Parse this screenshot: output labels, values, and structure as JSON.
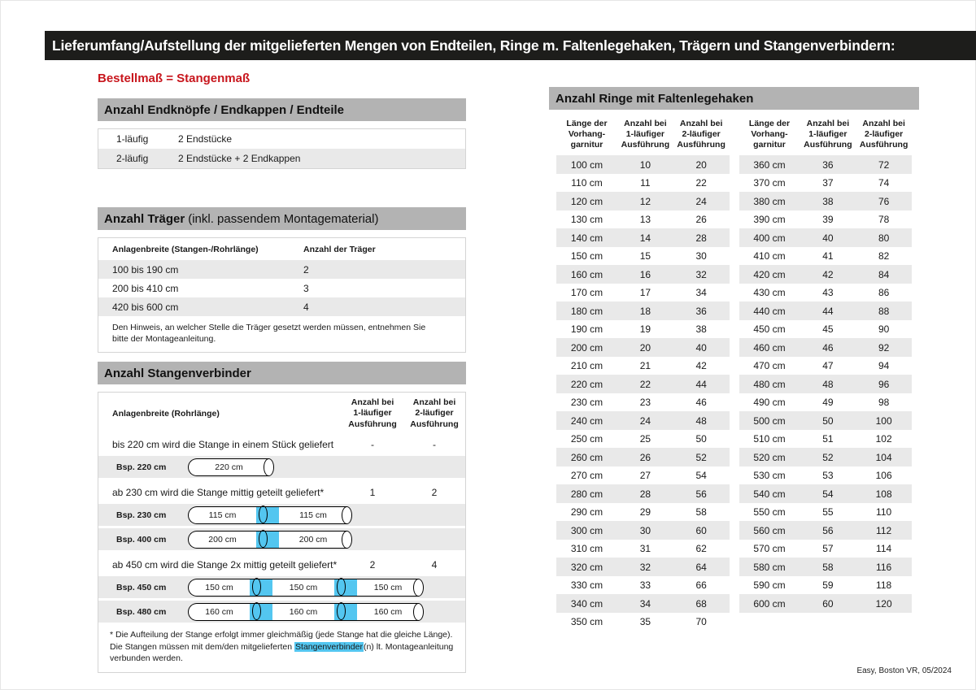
{
  "page": {
    "title": "Lieferumfang/Aufstellung der mitgelieferten Mengen von Endteilen, Ringe m. Faltenlegehaken, Trägern und Stangenverbindern:",
    "subtitle": "Bestellmaß = Stangenmaß",
    "footer": "Easy, Boston VR, 05/2024"
  },
  "colors": {
    "bar_dark": "#1d1d1b",
    "header_gray": "#b3b3b3",
    "stripe_gray": "#e9e9e9",
    "accent_red": "#c8161d",
    "connector_cyan": "#53c6f0"
  },
  "endteile": {
    "header": "Anzahl Endknöpfe / Endkappen / Endteile",
    "rows": [
      {
        "type": "1-läufig",
        "value": "2 Endstücke"
      },
      {
        "type": "2-läufig",
        "value": "2 Endstücke + 2 Endkappen"
      }
    ]
  },
  "traeger": {
    "header_bold": "Anzahl Träger",
    "header_rest": "(inkl. passendem Montagematerial)",
    "col1": "Anlagenbreite (Stangen-/Rohrlänge)",
    "col2": "Anzahl der Träger",
    "rows": [
      {
        "range": "100 bis 190 cm",
        "count": "2"
      },
      {
        "range": "200 bis 410 cm",
        "count": "3"
      },
      {
        "range": "420 bis 600 cm",
        "count": "4"
      }
    ],
    "note": "Den Hinweis, an welcher Stelle die Träger gesetzt werden müssen, entnehmen Sie bitte der Montageanleitung."
  },
  "verbinder": {
    "header": "Anzahl Stangenverbinder",
    "col1": "Anlagenbreite (Rohrlänge)",
    "col_one": "Anzahl bei\n1-läufiger\nAusführung",
    "col_two": "Anzahl bei\n2-läufiger\nAusführung",
    "groups": [
      {
        "text": "bis 220 cm wird die Stange in einem Stück geliefert",
        "one": "-",
        "two": "-",
        "examples": [
          {
            "label": "Bsp. 220 cm",
            "segments": [
              "220 cm"
            ]
          }
        ]
      },
      {
        "text": "ab 230 cm wird die Stange mittig geteilt geliefert*",
        "one": "1",
        "two": "2",
        "examples": [
          {
            "label": "Bsp. 230 cm",
            "segments": [
              "115 cm",
              "115 cm"
            ]
          },
          {
            "label": "Bsp. 400 cm",
            "segments": [
              "200 cm",
              "200 cm"
            ]
          }
        ]
      },
      {
        "text": "ab 450 cm wird die Stange 2x mittig geteilt geliefert*",
        "one": "2",
        "two": "4",
        "examples": [
          {
            "label": "Bsp. 450 cm",
            "segments": [
              "150 cm",
              "150 cm",
              "150 cm"
            ]
          },
          {
            "label": "Bsp. 480 cm",
            "segments": [
              "160 cm",
              "160 cm",
              "160 cm"
            ]
          }
        ]
      }
    ],
    "footnote_1": "* Die Aufteilung der Stange erfolgt immer gleichmäßig (jede Stange hat die gleiche Länge). Die Stangen müssen mit dem/den mitgelieferten ",
    "footnote_highlight": "Stangenverbinder",
    "footnote_2": "(n) lt. Montageanleitung verbunden werden."
  },
  "ringe": {
    "header": "Anzahl Ringe mit Faltenlegehaken",
    "col_len": "Länge der\nVorhang-\ngarnitur",
    "col_one": "Anzahl bei\n1-läufiger\nAusführung",
    "col_two": "Anzahl bei\n2-läufiger\nAusführung",
    "table_left": [
      {
        "len": "100 cm",
        "one": "10",
        "two": "20"
      },
      {
        "len": "110 cm",
        "one": "11",
        "two": "22"
      },
      {
        "len": "120 cm",
        "one": "12",
        "two": "24"
      },
      {
        "len": "130 cm",
        "one": "13",
        "two": "26"
      },
      {
        "len": "140 cm",
        "one": "14",
        "two": "28"
      },
      {
        "len": "150 cm",
        "one": "15",
        "two": "30"
      },
      {
        "len": "160 cm",
        "one": "16",
        "two": "32"
      },
      {
        "len": "170 cm",
        "one": "17",
        "two": "34"
      },
      {
        "len": "180 cm",
        "one": "18",
        "two": "36"
      },
      {
        "len": "190 cm",
        "one": "19",
        "two": "38"
      },
      {
        "len": "200 cm",
        "one": "20",
        "two": "40"
      },
      {
        "len": "210 cm",
        "one": "21",
        "two": "42"
      },
      {
        "len": "220 cm",
        "one": "22",
        "two": "44"
      },
      {
        "len": "230 cm",
        "one": "23",
        "two": "46"
      },
      {
        "len": "240 cm",
        "one": "24",
        "two": "48"
      },
      {
        "len": "250 cm",
        "one": "25",
        "two": "50"
      },
      {
        "len": "260 cm",
        "one": "26",
        "two": "52"
      },
      {
        "len": "270 cm",
        "one": "27",
        "two": "54"
      },
      {
        "len": "280 cm",
        "one": "28",
        "two": "56"
      },
      {
        "len": "290 cm",
        "one": "29",
        "two": "58"
      },
      {
        "len": "300 cm",
        "one": "30",
        "two": "60"
      },
      {
        "len": "310 cm",
        "one": "31",
        "two": "62"
      },
      {
        "len": "320 cm",
        "one": "32",
        "two": "64"
      },
      {
        "len": "330 cm",
        "one": "33",
        "two": "66"
      },
      {
        "len": "340 cm",
        "one": "34",
        "two": "68"
      },
      {
        "len": "350 cm",
        "one": "35",
        "two": "70"
      }
    ],
    "table_right": [
      {
        "len": "360 cm",
        "one": "36",
        "two": "72"
      },
      {
        "len": "370 cm",
        "one": "37",
        "two": "74"
      },
      {
        "len": "380 cm",
        "one": "38",
        "two": "76"
      },
      {
        "len": "390 cm",
        "one": "39",
        "two": "78"
      },
      {
        "len": "400 cm",
        "one": "40",
        "two": "80"
      },
      {
        "len": "410 cm",
        "one": "41",
        "two": "82"
      },
      {
        "len": "420 cm",
        "one": "42",
        "two": "84"
      },
      {
        "len": "430 cm",
        "one": "43",
        "two": "86"
      },
      {
        "len": "440 cm",
        "one": "44",
        "two": "88"
      },
      {
        "len": "450 cm",
        "one": "45",
        "two": "90"
      },
      {
        "len": "460 cm",
        "one": "46",
        "two": "92"
      },
      {
        "len": "470 cm",
        "one": "47",
        "two": "94"
      },
      {
        "len": "480 cm",
        "one": "48",
        "two": "96"
      },
      {
        "len": "490 cm",
        "one": "49",
        "two": "98"
      },
      {
        "len": "500 cm",
        "one": "50",
        "two": "100"
      },
      {
        "len": "510 cm",
        "one": "51",
        "two": "102"
      },
      {
        "len": "520 cm",
        "one": "52",
        "two": "104"
      },
      {
        "len": "530 cm",
        "one": "53",
        "two": "106"
      },
      {
        "len": "540 cm",
        "one": "54",
        "two": "108"
      },
      {
        "len": "550 cm",
        "one": "55",
        "two": "110"
      },
      {
        "len": "560 cm",
        "one": "56",
        "two": "112"
      },
      {
        "len": "570 cm",
        "one": "57",
        "two": "114"
      },
      {
        "len": "580 cm",
        "one": "58",
        "two": "116"
      },
      {
        "len": "590 cm",
        "one": "59",
        "two": "118"
      },
      {
        "len": "600 cm",
        "one": "60",
        "two": "120"
      }
    ]
  }
}
